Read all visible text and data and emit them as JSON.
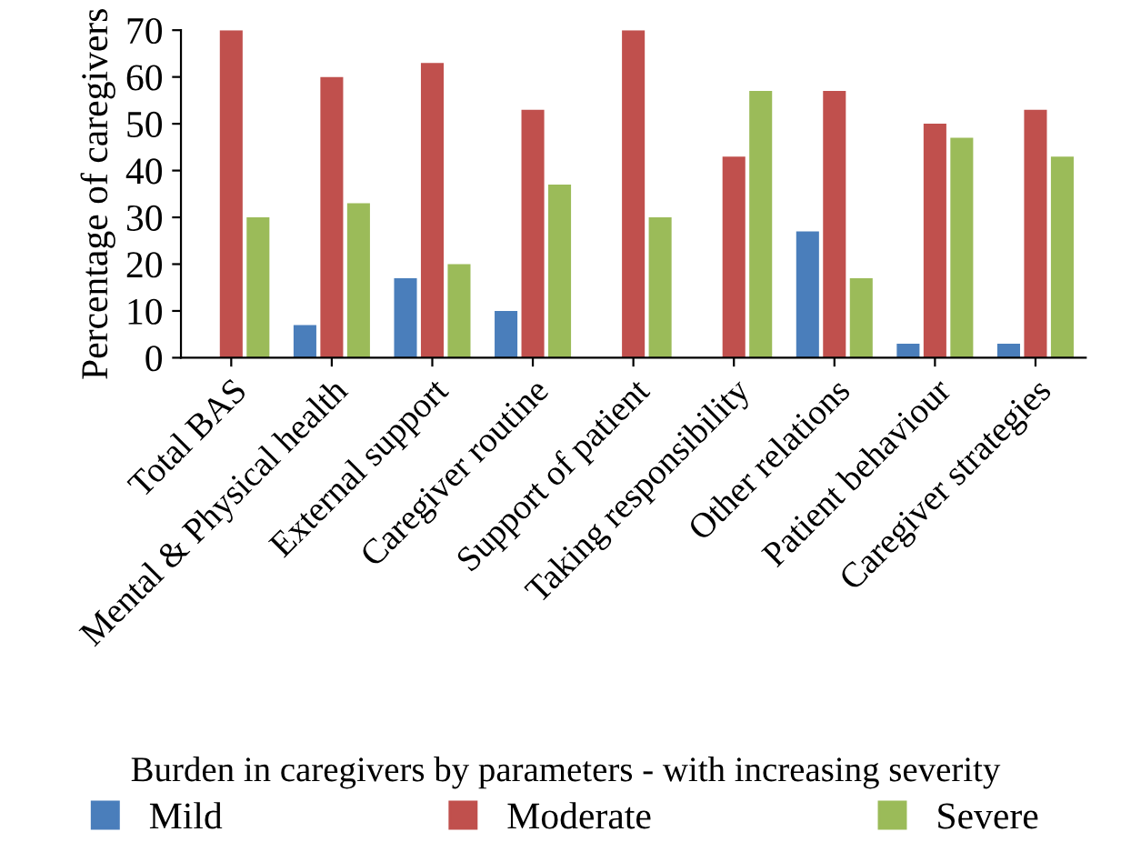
{
  "chart_data": {
    "type": "bar",
    "xlabel": "Burden in caregivers by parameters - with increasing severity",
    "ylabel": "Percentage of caregivers",
    "categories": [
      "Total BAS",
      "Mental & Physical health",
      "External support",
      "Caregiver routine",
      "Support of patient",
      "Taking responsibility",
      "Other relations",
      "Patient behaviour",
      "Caregiver strategies"
    ],
    "series": [
      {
        "name": "Mild",
        "color": "#4a7ebb",
        "values": [
          0,
          7,
          17,
          10,
          0,
          0,
          27,
          3,
          3
        ]
      },
      {
        "name": "Moderate",
        "color": "#c0504d",
        "values": [
          70,
          60,
          63,
          53,
          70,
          43,
          57,
          50,
          53
        ]
      },
      {
        "name": "Severe",
        "color": "#9bbb59",
        "values": [
          30,
          33,
          20,
          37,
          30,
          57,
          17,
          47,
          43
        ]
      }
    ],
    "ylim": [
      0,
      70
    ],
    "yticks": [
      0,
      10,
      20,
      30,
      40,
      50,
      60,
      70
    ],
    "grid": false,
    "legend": "bottom"
  }
}
